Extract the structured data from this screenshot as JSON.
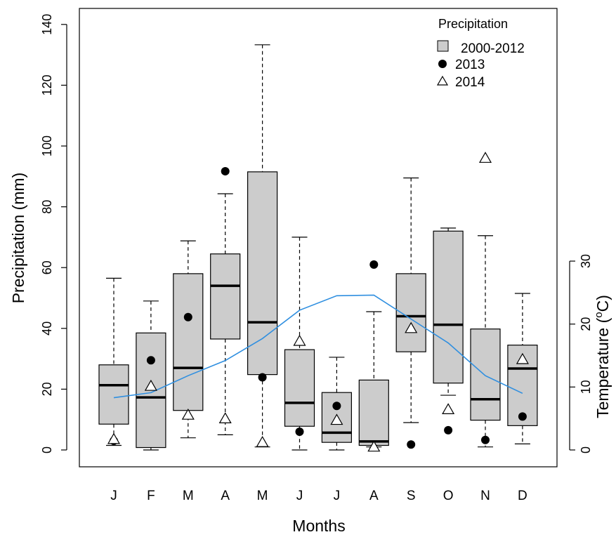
{
  "chart_data": {
    "type": "box",
    "xlabel": "Months",
    "ylabel": "Precipitation (mm)",
    "y2label_base": "Temperature (",
    "y2label_sup": "o",
    "y2label_end": "C)",
    "categories": [
      "J",
      "F",
      "M",
      "A",
      "M",
      "J",
      "J",
      "A",
      "S",
      "O",
      "N",
      "D"
    ],
    "ylim": [
      0,
      140
    ],
    "yticks": [
      0,
      20,
      40,
      60,
      80,
      100,
      120,
      140
    ],
    "y2lim": [
      0,
      30
    ],
    "y2ticks": [
      0,
      10,
      20,
      30
    ],
    "legend": {
      "title": "Precipitation",
      "position": "top-right",
      "entries": [
        {
          "label": "2000-2012",
          "marker": "box"
        },
        {
          "label": "2013",
          "marker": "filled-circle"
        },
        {
          "label": "2014",
          "marker": "open-triangle"
        }
      ]
    },
    "boxplot": {
      "name": "2000-2012",
      "min": [
        1.5,
        0.0,
        4.0,
        5.0,
        1.0,
        0.0,
        0.0,
        1.0,
        9.0,
        18.0,
        1.0,
        2.0
      ],
      "q1": [
        8.5,
        0.8,
        13.0,
        36.5,
        24.8,
        7.8,
        2.5,
        1.5,
        32.3,
        22.0,
        9.8,
        8.0
      ],
      "median": [
        21.3,
        17.3,
        27.0,
        54.0,
        42.0,
        15.5,
        5.7,
        2.8,
        44.0,
        41.2,
        16.7,
        26.8
      ],
      "q3": [
        28.0,
        38.5,
        58.0,
        64.5,
        91.5,
        33.0,
        18.9,
        23.0,
        58.0,
        72.0,
        39.8,
        34.5
      ],
      "max": [
        56.5,
        49.0,
        68.8,
        84.3,
        133.3,
        70.0,
        30.5,
        45.5,
        89.5,
        73.0,
        70.5,
        51.5
      ]
    },
    "series": [
      {
        "name": "2013",
        "values": [
          3.0,
          29.5,
          43.7,
          91.7,
          23.9,
          6.0,
          14.5,
          61.0,
          1.8,
          6.5,
          3.3,
          11.0
        ]
      },
      {
        "name": "2014",
        "values": [
          3.5,
          21.0,
          11.5,
          10.3,
          2.5,
          35.8,
          9.8,
          1.0,
          40.0,
          13.3,
          96.0,
          29.8
        ]
      }
    ],
    "temperature": {
      "axis": "right",
      "color": "#2f8fe0",
      "values": [
        8.3,
        9.1,
        11.8,
        14.2,
        17.7,
        22.2,
        24.5,
        24.6,
        20.8,
        17.0,
        11.8,
        9.0
      ]
    }
  }
}
